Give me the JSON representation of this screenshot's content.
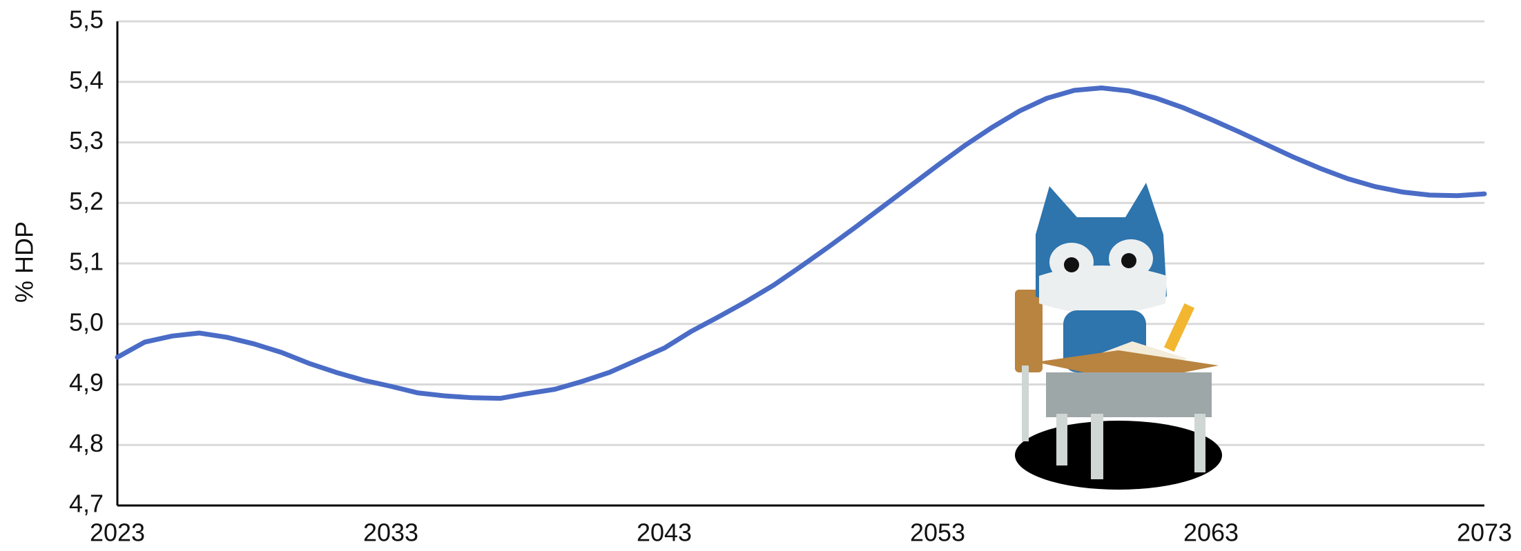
{
  "chart_data": {
    "type": "line",
    "y_label": "% HDP",
    "color": "#4a6cc6",
    "grid": true,
    "x": [
      2023,
      2024,
      2025,
      2026,
      2027,
      2028,
      2029,
      2030,
      2031,
      2032,
      2033,
      2034,
      2035,
      2036,
      2037,
      2038,
      2039,
      2040,
      2041,
      2042,
      2043,
      2044,
      2045,
      2046,
      2047,
      2048,
      2049,
      2050,
      2051,
      2052,
      2053,
      2054,
      2055,
      2056,
      2057,
      2058,
      2059,
      2060,
      2061,
      2062,
      2063,
      2064,
      2065,
      2066,
      2067,
      2068,
      2069,
      2070,
      2071,
      2072,
      2073
    ],
    "values": [
      4.945,
      4.97,
      4.98,
      4.985,
      4.978,
      4.967,
      4.953,
      4.935,
      4.92,
      4.907,
      4.897,
      4.886,
      4.881,
      4.878,
      4.877,
      4.885,
      4.892,
      4.905,
      4.92,
      4.94,
      4.96,
      4.988,
      5.012,
      5.037,
      5.064,
      5.095,
      5.127,
      5.16,
      5.194,
      5.228,
      5.262,
      5.295,
      5.325,
      5.352,
      5.373,
      5.386,
      5.39,
      5.385,
      5.373,
      5.357,
      5.338,
      5.318,
      5.297,
      5.276,
      5.257,
      5.24,
      5.227,
      5.218,
      5.213,
      5.212,
      5.215
    ],
    "xlim": [
      2023,
      2073
    ],
    "xticks": [
      2023,
      2033,
      2043,
      2053,
      2063,
      2073
    ],
    "ylim": [
      4.7,
      5.5
    ],
    "yticks": [
      {
        "value": 4.7,
        "label": "4,7"
      },
      {
        "value": 4.8,
        "label": "4,8"
      },
      {
        "value": 4.9,
        "label": "4,9"
      },
      {
        "value": 5.0,
        "label": "5,0"
      },
      {
        "value": 5.1,
        "label": "5,1"
      },
      {
        "value": 5.2,
        "label": "5,2"
      },
      {
        "value": 5.3,
        "label": "5,3"
      },
      {
        "value": 5.4,
        "label": "5,4"
      },
      {
        "value": 5.5,
        "label": "5,5"
      }
    ]
  }
}
